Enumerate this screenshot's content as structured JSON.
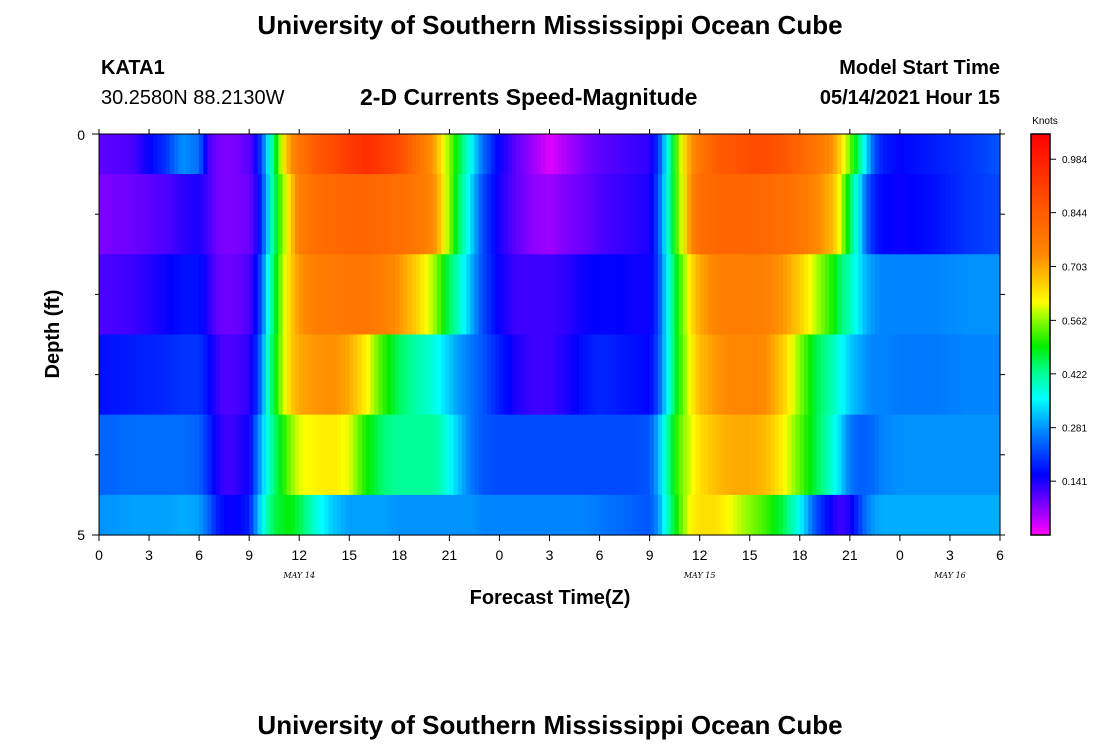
{
  "header": {
    "title_top": "University of Southern Mississippi Ocean Cube",
    "title_bottom": "University of Southern Mississippi Ocean Cube",
    "station_id": "KATA1",
    "station_coords": "30.2580N  88.2130W",
    "subtitle": "2-D Currents Speed-Magnitude",
    "model_start_label": "Model Start Time",
    "model_start_value": "05/14/2021 Hour 15"
  },
  "chart_data": {
    "type": "heatmap",
    "title": "2-D Currents Speed-Magnitude",
    "xlabel": "Forecast Time(Z)",
    "ylabel": "Depth (ft)",
    "x_ticks": [
      "0",
      "3",
      "6",
      "9",
      "12",
      "15",
      "18",
      "21",
      "0",
      "3",
      "6",
      "9",
      "12",
      "15",
      "18",
      "21",
      "0",
      "3",
      "6"
    ],
    "x_hours": [
      0,
      3,
      6,
      9,
      12,
      15,
      18,
      21,
      24,
      27,
      30,
      33,
      36,
      39,
      42,
      45,
      48,
      51,
      54
    ],
    "xlim": [
      0,
      54
    ],
    "y_ticks": [
      "0",
      "5"
    ],
    "ylim": [
      0,
      5
    ],
    "date_labels": [
      {
        "text": "MAY 14",
        "hour": 12
      },
      {
        "text": "MAY 15",
        "hour": 36
      },
      {
        "text": "MAY 16",
        "hour": 51
      }
    ],
    "colorbar": {
      "label": "Knots",
      "min": 0.0,
      "max": 1.05,
      "ticks": [
        "0.984",
        "0.844",
        "0.703",
        "0.562",
        "0.422",
        "0.281",
        "0.141"
      ],
      "tick_values": [
        0.984,
        0.844,
        0.703,
        0.562,
        0.422,
        0.281,
        0.141
      ]
    },
    "layer_depths": [
      0.5,
      1.5,
      2.5,
      3.5,
      4.5,
      5.0
    ],
    "time_knots": [
      0,
      2,
      4,
      5,
      6,
      6.5,
      7,
      7.5,
      8,
      9,
      9.5,
      10,
      10.5,
      11,
      11.5,
      12,
      13,
      14,
      15,
      16,
      17,
      18,
      19,
      20,
      20.5,
      21,
      21.5,
      22,
      22.5,
      23,
      24,
      25,
      26,
      27,
      28,
      29,
      30,
      31,
      32,
      33,
      33.5,
      34,
      34.5,
      35,
      35.5,
      36,
      37,
      38,
      39,
      40,
      41,
      42,
      43,
      44,
      44.5,
      45,
      45.5,
      46,
      46.5,
      47,
      48,
      50,
      52,
      54
    ],
    "speed_rows": [
      [
        0.1,
        0.11,
        0.2,
        0.28,
        0.25,
        0.12,
        0.09,
        0.08,
        0.08,
        0.1,
        0.16,
        0.3,
        0.45,
        0.62,
        0.72,
        0.78,
        0.85,
        0.88,
        0.92,
        0.95,
        0.92,
        0.88,
        0.8,
        0.72,
        0.64,
        0.56,
        0.48,
        0.4,
        0.33,
        0.25,
        0.15,
        0.1,
        0.06,
        0.02,
        0.05,
        0.08,
        0.1,
        0.11,
        0.12,
        0.13,
        0.2,
        0.35,
        0.5,
        0.63,
        0.72,
        0.78,
        0.84,
        0.86,
        0.88,
        0.88,
        0.86,
        0.82,
        0.78,
        0.72,
        0.64,
        0.55,
        0.45,
        0.33,
        0.22,
        0.18,
        0.16,
        0.18,
        0.2,
        0.23
      ],
      [
        0.08,
        0.09,
        0.11,
        0.13,
        0.14,
        0.12,
        0.09,
        0.08,
        0.08,
        0.09,
        0.14,
        0.28,
        0.44,
        0.56,
        0.66,
        0.76,
        0.8,
        0.81,
        0.82,
        0.82,
        0.81,
        0.8,
        0.78,
        0.74,
        0.66,
        0.56,
        0.46,
        0.38,
        0.3,
        0.22,
        0.14,
        0.1,
        0.07,
        0.06,
        0.08,
        0.09,
        0.11,
        0.12,
        0.13,
        0.14,
        0.22,
        0.36,
        0.5,
        0.62,
        0.74,
        0.8,
        0.82,
        0.82,
        0.82,
        0.81,
        0.8,
        0.78,
        0.74,
        0.68,
        0.58,
        0.46,
        0.36,
        0.24,
        0.18,
        0.16,
        0.15,
        0.17,
        0.2,
        0.22
      ],
      [
        0.11,
        0.12,
        0.15,
        0.17,
        0.17,
        0.14,
        0.1,
        0.09,
        0.09,
        0.11,
        0.17,
        0.32,
        0.46,
        0.58,
        0.66,
        0.72,
        0.76,
        0.77,
        0.78,
        0.78,
        0.76,
        0.72,
        0.66,
        0.58,
        0.52,
        0.45,
        0.4,
        0.34,
        0.28,
        0.22,
        0.15,
        0.12,
        0.12,
        0.12,
        0.13,
        0.15,
        0.16,
        0.16,
        0.15,
        0.15,
        0.21,
        0.34,
        0.46,
        0.56,
        0.64,
        0.7,
        0.75,
        0.76,
        0.76,
        0.75,
        0.72,
        0.66,
        0.58,
        0.5,
        0.44,
        0.4,
        0.35,
        0.3,
        0.28,
        0.27,
        0.27,
        0.27,
        0.28,
        0.28
      ],
      [
        0.17,
        0.18,
        0.19,
        0.2,
        0.2,
        0.17,
        0.13,
        0.11,
        0.11,
        0.13,
        0.2,
        0.35,
        0.48,
        0.58,
        0.66,
        0.7,
        0.72,
        0.73,
        0.7,
        0.62,
        0.52,
        0.45,
        0.41,
        0.38,
        0.35,
        0.32,
        0.29,
        0.27,
        0.25,
        0.23,
        0.18,
        0.14,
        0.12,
        0.12,
        0.14,
        0.17,
        0.19,
        0.18,
        0.17,
        0.16,
        0.22,
        0.34,
        0.46,
        0.55,
        0.62,
        0.68,
        0.72,
        0.74,
        0.74,
        0.73,
        0.66,
        0.56,
        0.46,
        0.4,
        0.36,
        0.32,
        0.3,
        0.28,
        0.27,
        0.27,
        0.26,
        0.26,
        0.27,
        0.27
      ],
      [
        0.24,
        0.25,
        0.25,
        0.25,
        0.24,
        0.2,
        0.15,
        0.12,
        0.12,
        0.15,
        0.26,
        0.36,
        0.44,
        0.5,
        0.56,
        0.6,
        0.62,
        0.63,
        0.6,
        0.5,
        0.44,
        0.42,
        0.42,
        0.42,
        0.4,
        0.36,
        0.32,
        0.28,
        0.25,
        0.23,
        0.22,
        0.22,
        0.22,
        0.22,
        0.22,
        0.22,
        0.22,
        0.22,
        0.22,
        0.23,
        0.3,
        0.4,
        0.5,
        0.56,
        0.6,
        0.64,
        0.68,
        0.7,
        0.7,
        0.68,
        0.62,
        0.54,
        0.46,
        0.38,
        0.32,
        0.26,
        0.24,
        0.24,
        0.25,
        0.27,
        0.28,
        0.28,
        0.28,
        0.28
      ],
      [
        0.28,
        0.29,
        0.29,
        0.3,
        0.29,
        0.25,
        0.19,
        0.16,
        0.15,
        0.18,
        0.3,
        0.4,
        0.46,
        0.48,
        0.49,
        0.46,
        0.38,
        0.32,
        0.29,
        0.29,
        0.29,
        0.28,
        0.28,
        0.28,
        0.28,
        0.28,
        0.28,
        0.28,
        0.28,
        0.27,
        0.27,
        0.27,
        0.27,
        0.27,
        0.27,
        0.27,
        0.26,
        0.25,
        0.24,
        0.23,
        0.28,
        0.38,
        0.48,
        0.56,
        0.62,
        0.64,
        0.64,
        0.6,
        0.56,
        0.52,
        0.46,
        0.36,
        0.22,
        0.14,
        0.12,
        0.14,
        0.2,
        0.26,
        0.29,
        0.3,
        0.3,
        0.3,
        0.3,
        0.3
      ]
    ]
  }
}
